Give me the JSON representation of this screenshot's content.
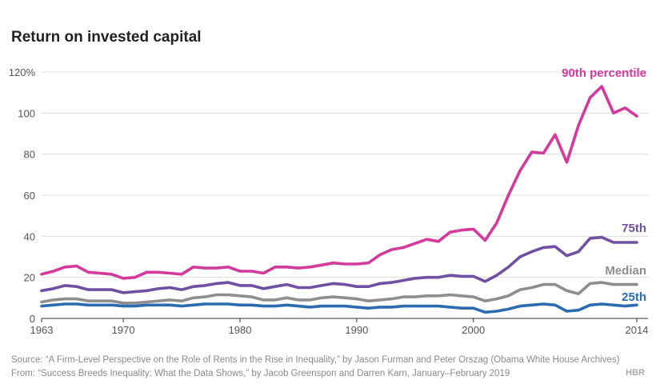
{
  "chart_data": {
    "type": "line",
    "title": "Return on invested capital",
    "x": [
      1963,
      1964,
      1965,
      1966,
      1967,
      1968,
      1969,
      1970,
      1971,
      1972,
      1973,
      1974,
      1975,
      1976,
      1977,
      1978,
      1979,
      1980,
      1981,
      1982,
      1983,
      1984,
      1985,
      1986,
      1987,
      1988,
      1989,
      1990,
      1991,
      1992,
      1993,
      1994,
      1995,
      1996,
      1997,
      1998,
      1999,
      2000,
      2001,
      2002,
      2003,
      2004,
      2005,
      2006,
      2007,
      2008,
      2009,
      2010,
      2011,
      2012,
      2013,
      2014
    ],
    "xticks": [
      "1963",
      "1970",
      "1980",
      "1990",
      "2000",
      "2014"
    ],
    "xtick_values": [
      1963,
      1970,
      1980,
      1990,
      2000,
      2014
    ],
    "yticks": [
      "0",
      "20",
      "40",
      "60",
      "80",
      "100",
      "120%"
    ],
    "ytick_values": [
      0,
      20,
      40,
      60,
      80,
      100,
      120
    ],
    "xlim": [
      1963,
      2014
    ],
    "ylim": [
      0,
      120
    ],
    "grid": true,
    "series": [
      {
        "name": "90th percentile",
        "color": "#d4399c",
        "values": [
          21.5,
          23.0,
          25.0,
          25.5,
          22.5,
          22.0,
          21.5,
          19.5,
          20.0,
          22.5,
          22.5,
          22.0,
          21.5,
          25.0,
          24.5,
          24.5,
          25.0,
          23.0,
          23.0,
          22.0,
          25.0,
          25.0,
          24.5,
          25.0,
          26.0,
          27.0,
          26.5,
          26.5,
          27.0,
          31.0,
          33.5,
          34.5,
          36.5,
          38.5,
          37.5,
          42.0,
          43.0,
          43.5,
          38.0,
          46.5,
          60.0,
          72.0,
          81.0,
          80.5,
          89.5,
          76.0,
          94.0,
          107.5,
          113.0,
          100.0,
          102.5,
          98.5
        ]
      },
      {
        "name": "75th",
        "color": "#7050a3",
        "values": [
          13.5,
          14.5,
          16.0,
          15.5,
          14.0,
          14.0,
          14.0,
          12.5,
          13.0,
          13.5,
          14.5,
          15.0,
          14.0,
          15.5,
          16.0,
          17.0,
          17.5,
          16.0,
          16.0,
          14.5,
          15.5,
          16.5,
          15.0,
          15.0,
          16.0,
          17.0,
          16.5,
          15.5,
          15.5,
          17.0,
          17.5,
          18.5,
          19.5,
          20.0,
          20.0,
          21.0,
          20.5,
          20.5,
          18.0,
          21.0,
          25.0,
          30.0,
          32.5,
          34.5,
          35.0,
          30.5,
          32.5,
          39.0,
          39.5,
          37.0,
          37.0,
          37.0
        ]
      },
      {
        "name": "Median",
        "color": "#8e8e8e",
        "values": [
          8.0,
          9.0,
          9.5,
          9.5,
          8.5,
          8.5,
          8.5,
          7.5,
          7.5,
          8.0,
          8.5,
          9.0,
          8.5,
          10.0,
          10.5,
          11.5,
          11.5,
          11.0,
          10.5,
          9.0,
          9.0,
          10.0,
          9.0,
          9.0,
          10.0,
          10.5,
          10.0,
          9.5,
          8.5,
          9.0,
          9.5,
          10.5,
          10.5,
          11.0,
          11.0,
          11.5,
          11.0,
          10.5,
          8.5,
          9.5,
          11.0,
          14.0,
          15.0,
          16.5,
          16.5,
          13.5,
          12.0,
          17.0,
          17.5,
          16.5,
          16.5,
          16.5
        ]
      },
      {
        "name": "25th",
        "color": "#2b6cb0",
        "values": [
          6.0,
          6.5,
          7.0,
          7.0,
          6.5,
          6.5,
          6.5,
          6.0,
          6.0,
          6.5,
          6.5,
          6.5,
          6.0,
          6.5,
          7.0,
          7.0,
          7.0,
          6.5,
          6.5,
          6.0,
          6.0,
          6.5,
          6.0,
          5.5,
          6.0,
          6.0,
          6.0,
          5.5,
          5.0,
          5.5,
          5.5,
          6.0,
          6.0,
          6.0,
          6.0,
          5.5,
          5.0,
          5.0,
          3.0,
          3.5,
          4.5,
          6.0,
          6.5,
          7.0,
          6.5,
          3.5,
          4.0,
          6.5,
          7.0,
          6.5,
          6.0,
          6.5
        ]
      }
    ]
  },
  "source_line": "Source: “A Firm-Level Perspective on the Role of Rents in the Rise in Inequality,” by Jason Furman and Peter Orszag (Obama White House Archives)",
  "from_line": "From: “Success Breeds Inequality: What the Data Shows,” by Jacob Greenspon and Darren Karn, January–February 2019",
  "logo_text": "HBR"
}
